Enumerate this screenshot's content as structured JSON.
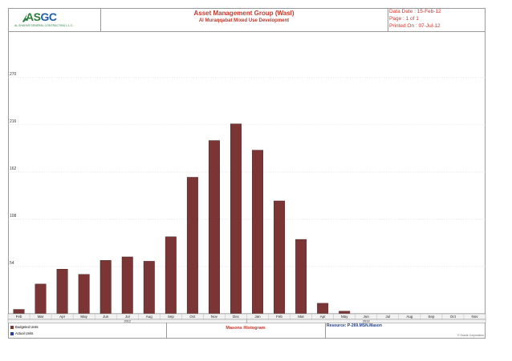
{
  "header": {
    "logo_text_a": "AS",
    "logo_text_b": "GC",
    "logo_subtext": "AL SHAFAR GENERAL CONTRACTING L.L.C.",
    "title": "Asset Management Group (Wasl)",
    "subtitle": "Al Muraqqabat Mixed Use Development",
    "data_date": "Data Date : 15-Feb-12",
    "page": "Page : 1 of 1",
    "printed_on": "Printed On : 07-Jul-12"
  },
  "chart_data": {
    "type": "bar",
    "categories": [
      "Feb",
      "Mar",
      "Apr",
      "May",
      "Jun",
      "Jul",
      "Aug",
      "Sep",
      "Oct",
      "Nov",
      "Dec",
      "Jan",
      "Feb",
      "Mar",
      "Apr",
      "May",
      "Jun",
      "Jul",
      "Aug",
      "Sep",
      "Oct",
      "Nov"
    ],
    "years": [
      {
        "label": "2012",
        "start": 0,
        "end": 11
      },
      {
        "label": "2013",
        "start": 11,
        "end": 22
      }
    ],
    "values": [
      5,
      34,
      51,
      45,
      61,
      65,
      60,
      88,
      156,
      198,
      217,
      187,
      129,
      85,
      12,
      3,
      0,
      0,
      0,
      0,
      0,
      0
    ],
    "yticks": [
      54,
      108,
      162,
      216,
      270
    ],
    "ylim": [
      0,
      322
    ],
    "bar_color": "#7b3535",
    "grid": true
  },
  "legend": {
    "items": [
      {
        "label": "Budgeted Units",
        "color": "#7b3535"
      },
      {
        "label": "Actual Units",
        "color": "#2b3aa8"
      }
    ]
  },
  "footer": {
    "histogram_title": "Masons Histogram",
    "resource": "Resource: P-269.MSN.Mason",
    "copyright": "© Oracle Corporation"
  }
}
